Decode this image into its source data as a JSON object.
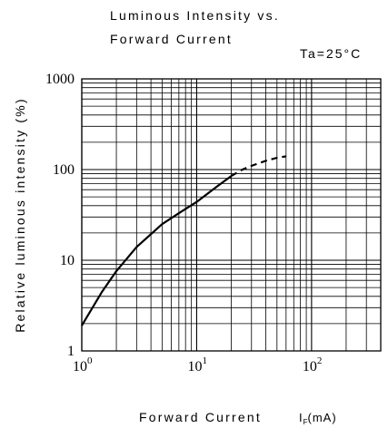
{
  "chart_data": {
    "type": "line",
    "title_lines": [
      "Luminous Intensity vs.",
      "Forward Current"
    ],
    "condition": "Ta=25°C",
    "xlabel": "Forward Current",
    "x_unit": {
      "symbol": "I",
      "subscript": "F",
      "unit": "(mA)"
    },
    "ylabel": "Relative luminous intensity (%)",
    "x_scale": "log",
    "y_scale": "log",
    "xlim": [
      1,
      400
    ],
    "ylim": [
      1,
      1000
    ],
    "grid": true,
    "x_ticks": [
      {
        "value": 1,
        "base": "10",
        "exp": "0"
      },
      {
        "value": 10,
        "base": "10",
        "exp": "1"
      },
      {
        "value": 100,
        "base": "10",
        "exp": "2"
      }
    ],
    "y_ticks": [
      {
        "value": 1,
        "label": "1"
      },
      {
        "value": 10,
        "label": "10"
      },
      {
        "value": 100,
        "label": "100"
      },
      {
        "value": 1000,
        "label": "1000"
      }
    ],
    "series": [
      {
        "style": "solid",
        "x": [
          1,
          1.5,
          2,
          3,
          5,
          7,
          10,
          15,
          20
        ],
        "y": [
          1.9,
          4.5,
          7.6,
          14,
          25,
          33,
          44,
          65,
          85
        ]
      },
      {
        "style": "dashed",
        "x": [
          20,
          25,
          30,
          40,
          50,
          60
        ],
        "y": [
          85,
          100,
          110,
          125,
          135,
          140
        ]
      }
    ]
  }
}
